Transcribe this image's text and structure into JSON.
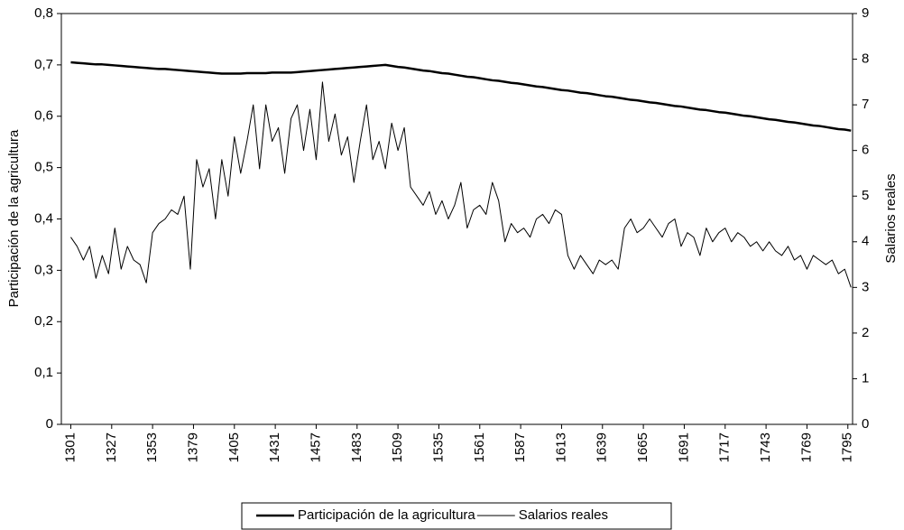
{
  "chart_data": {
    "type": "line",
    "x": [
      1301,
      1305,
      1309,
      1313,
      1317,
      1321,
      1325,
      1329,
      1333,
      1337,
      1341,
      1345,
      1349,
      1353,
      1357,
      1361,
      1365,
      1369,
      1373,
      1377,
      1381,
      1385,
      1389,
      1393,
      1397,
      1401,
      1405,
      1409,
      1413,
      1417,
      1421,
      1425,
      1429,
      1433,
      1437,
      1441,
      1445,
      1449,
      1453,
      1457,
      1461,
      1465,
      1469,
      1473,
      1477,
      1481,
      1485,
      1489,
      1493,
      1497,
      1501,
      1505,
      1509,
      1513,
      1517,
      1521,
      1525,
      1529,
      1533,
      1537,
      1541,
      1545,
      1549,
      1553,
      1557,
      1561,
      1565,
      1569,
      1573,
      1577,
      1581,
      1585,
      1589,
      1593,
      1597,
      1601,
      1605,
      1609,
      1613,
      1617,
      1621,
      1625,
      1629,
      1633,
      1637,
      1641,
      1645,
      1649,
      1653,
      1657,
      1661,
      1665,
      1669,
      1673,
      1677,
      1681,
      1685,
      1689,
      1693,
      1697,
      1701,
      1705,
      1709,
      1713,
      1717,
      1721,
      1725,
      1729,
      1733,
      1737,
      1741,
      1745,
      1749,
      1753,
      1757,
      1761,
      1765,
      1769,
      1773,
      1777,
      1781,
      1785,
      1789,
      1793,
      1797
    ],
    "series": [
      {
        "name": "Participación de la agricultura",
        "color": "#000000",
        "line_width": 2.5,
        "axis": "y",
        "values": [
          0.705,
          0.704,
          0.703,
          0.702,
          0.701,
          0.701,
          0.7,
          0.699,
          0.698,
          0.697,
          0.696,
          0.695,
          0.694,
          0.693,
          0.692,
          0.692,
          0.691,
          0.69,
          0.689,
          0.688,
          0.687,
          0.686,
          0.685,
          0.684,
          0.683,
          0.683,
          0.683,
          0.683,
          0.684,
          0.684,
          0.684,
          0.684,
          0.685,
          0.685,
          0.685,
          0.685,
          0.686,
          0.687,
          0.688,
          0.689,
          0.69,
          0.691,
          0.692,
          0.693,
          0.694,
          0.695,
          0.696,
          0.697,
          0.698,
          0.699,
          0.7,
          0.698,
          0.696,
          0.695,
          0.693,
          0.691,
          0.689,
          0.688,
          0.686,
          0.684,
          0.683,
          0.681,
          0.679,
          0.677,
          0.676,
          0.674,
          0.672,
          0.67,
          0.669,
          0.667,
          0.665,
          0.664,
          0.662,
          0.66,
          0.658,
          0.657,
          0.655,
          0.653,
          0.651,
          0.65,
          0.648,
          0.646,
          0.645,
          0.643,
          0.641,
          0.639,
          0.638,
          0.636,
          0.634,
          0.632,
          0.631,
          0.629,
          0.627,
          0.626,
          0.624,
          0.622,
          0.62,
          0.619,
          0.617,
          0.615,
          0.613,
          0.612,
          0.61,
          0.608,
          0.607,
          0.605,
          0.603,
          0.601,
          0.6,
          0.598,
          0.596,
          0.594,
          0.593,
          0.591,
          0.589,
          0.588,
          0.586,
          0.584,
          0.582,
          0.581,
          0.579,
          0.577,
          0.575,
          0.574,
          0.572
        ]
      },
      {
        "name": "Salarios reales",
        "color": "#000000",
        "line_width": 1,
        "axis": "y2",
        "values": [
          4.1,
          3.9,
          3.6,
          3.9,
          3.2,
          3.7,
          3.3,
          4.3,
          3.4,
          3.9,
          3.6,
          3.5,
          3.1,
          4.2,
          4.4,
          4.5,
          4.7,
          4.6,
          5.0,
          3.4,
          5.8,
          5.2,
          5.6,
          4.5,
          5.8,
          5.0,
          6.3,
          5.5,
          6.2,
          7.0,
          5.6,
          7.0,
          6.2,
          6.5,
          5.5,
          6.7,
          7.0,
          6.0,
          6.9,
          5.8,
          7.5,
          6.2,
          6.8,
          5.9,
          6.3,
          5.3,
          6.2,
          7.0,
          5.8,
          6.2,
          5.6,
          6.6,
          6.0,
          6.5,
          5.2,
          5.0,
          4.8,
          5.1,
          4.6,
          4.9,
          4.5,
          4.8,
          5.3,
          4.3,
          4.7,
          4.8,
          4.6,
          5.3,
          4.9,
          4.0,
          4.4,
          4.2,
          4.3,
          4.1,
          4.5,
          4.6,
          4.4,
          4.7,
          4.6,
          3.7,
          3.4,
          3.7,
          3.5,
          3.3,
          3.6,
          3.5,
          3.6,
          3.4,
          4.3,
          4.5,
          4.2,
          4.3,
          4.5,
          4.3,
          4.1,
          4.4,
          4.5,
          3.9,
          4.2,
          4.1,
          3.7,
          4.3,
          4.0,
          4.2,
          4.3,
          4.0,
          4.2,
          4.1,
          3.9,
          4.0,
          3.8,
          4.0,
          3.8,
          3.7,
          3.9,
          3.6,
          3.7,
          3.4,
          3.7,
          3.6,
          3.5,
          3.6,
          3.3,
          3.4,
          3.0
        ]
      }
    ],
    "y_label": "Participación de la agricultura",
    "y2_label": "Salarios reales",
    "xlim": [
      1295,
      1798
    ],
    "xticks": [
      1301,
      1327,
      1353,
      1379,
      1405,
      1431,
      1457,
      1483,
      1509,
      1535,
      1561,
      1587,
      1613,
      1639,
      1665,
      1691,
      1717,
      1743,
      1769,
      1795
    ],
    "ylim": [
      0,
      0.8
    ],
    "yticks": [
      0,
      {
        "value": 0.1,
        "label": "0,1"
      },
      {
        "value": 0.2,
        "label": "0,2"
      },
      {
        "value": 0.3,
        "label": "0,3"
      },
      {
        "value": 0.4,
        "label": "0,4"
      },
      {
        "value": 0.5,
        "label": "0,5"
      },
      {
        "value": 0.6,
        "label": "0,6"
      },
      {
        "value": 0.7,
        "label": "0,7"
      },
      {
        "value": 0.8,
        "label": "0,8"
      }
    ],
    "y2lim": [
      0,
      9
    ],
    "y2ticks": [
      0,
      1,
      2,
      3,
      4,
      5,
      6,
      7,
      8,
      9
    ],
    "legend": "bottom"
  }
}
